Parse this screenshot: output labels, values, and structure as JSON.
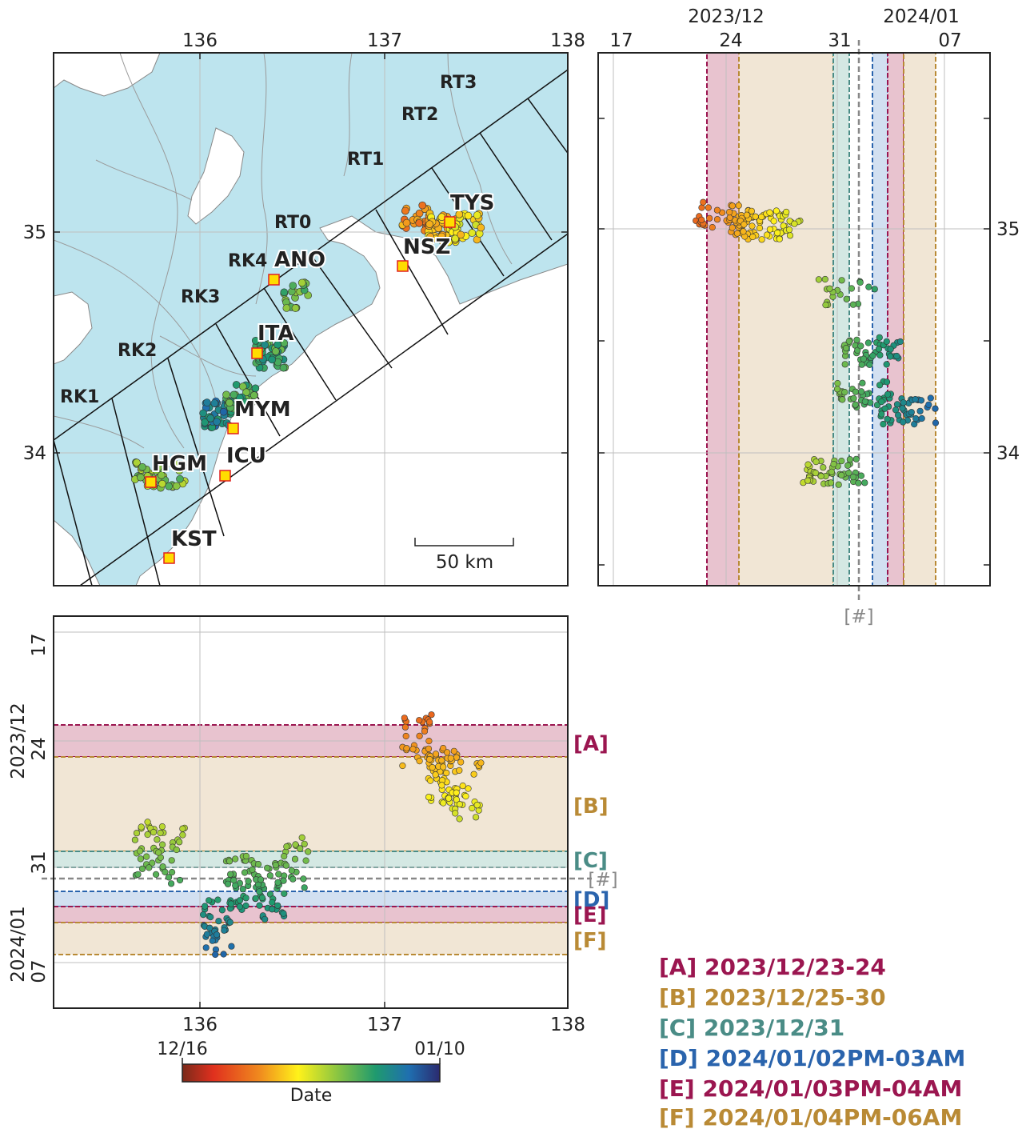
{
  "map": {
    "lon_ticks": [
      "136",
      "137",
      "138"
    ],
    "lat_ticks": [
      "35",
      "34"
    ],
    "xlim": [
      135.2,
      138.0
    ],
    "ylim": [
      33.5,
      35.8
    ],
    "segments": [
      "RK1",
      "RK2",
      "RK3",
      "RK4",
      "RT0",
      "RT1",
      "RT2",
      "RT3"
    ],
    "stations": [
      "ANO",
      "ITA",
      "MYM",
      "ICU",
      "HGM",
      "KST",
      "NSZ",
      "TYS"
    ],
    "scale_bar": "50 km",
    "colors": {
      "sea": "#bde4ee",
      "land": "#ffffff",
      "station_fill": "#ffdd00",
      "station_edge": "#e02020"
    }
  },
  "time_axis": {
    "top_month_labels": [
      "2023/12",
      "2024/01"
    ],
    "day_ticks": [
      "17",
      "24",
      "31",
      "07"
    ],
    "left_month_labels": [
      "2023/12",
      "2024/01"
    ],
    "marker": "[#]"
  },
  "periods": [
    {
      "tag": "[A]",
      "label": "2023/12/23-24",
      "color": "#9b1650",
      "fill": "#e8c3cf"
    },
    {
      "tag": "[B]",
      "label": "2023/12/25-30",
      "color": "#b98a35",
      "fill": "#f1e6d5"
    },
    {
      "tag": "[C]",
      "label": "2023/12/31",
      "color": "#4a8c86",
      "fill": "#d4e8e3"
    },
    {
      "tag": "[D]",
      "label": "2024/01/02PM-03AM",
      "color": "#2a64ad",
      "fill": "#d2e0f1"
    },
    {
      "tag": "[E]",
      "label": "2024/01/03PM-04AM",
      "color": "#9b1650",
      "fill": "#e8c3cf"
    },
    {
      "tag": "[F]",
      "label": "2024/01/04PM-06AM",
      "color": "#b98a35",
      "fill": "#f1e6d5"
    }
  ],
  "colorbar": {
    "start": "12/16",
    "end": "01/10",
    "title": "Date"
  },
  "chart_data": {
    "type": "scatter",
    "x": "longitude",
    "y": "latitude",
    "color": "date",
    "xlim": [
      135.2,
      138.0
    ],
    "ylim": [
      33.5,
      35.8
    ],
    "date_range": [
      "12/16",
      "01/10"
    ],
    "clusters": [
      {
        "lon": 135.72,
        "lat": 33.98,
        "n": 30,
        "date": 0.6
      },
      {
        "lon": 135.85,
        "lat": 33.98,
        "n": 20,
        "date": 0.62
      },
      {
        "lon": 136.09,
        "lat": 34.24,
        "n": 40,
        "date": 0.82
      },
      {
        "lon": 136.22,
        "lat": 34.31,
        "n": 40,
        "date": 0.7
      },
      {
        "lon": 136.38,
        "lat": 34.5,
        "n": 45,
        "date": 0.72
      },
      {
        "lon": 136.52,
        "lat": 34.75,
        "n": 20,
        "date": 0.65
      },
      {
        "lon": 137.18,
        "lat": 35.09,
        "n": 30,
        "date": 0.3
      },
      {
        "lon": 137.32,
        "lat": 35.04,
        "n": 60,
        "date": 0.4
      },
      {
        "lon": 137.45,
        "lat": 35.05,
        "n": 25,
        "date": 0.44
      }
    ]
  }
}
